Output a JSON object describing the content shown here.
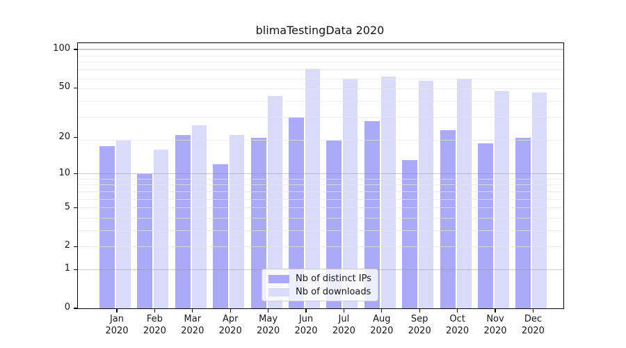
{
  "chart_data": {
    "type": "bar",
    "title": "blimaTestingData 2020",
    "categories": [
      "Jan",
      "Feb",
      "Mar",
      "Apr",
      "May",
      "Jun",
      "Jul",
      "Aug",
      "Sep",
      "Oct",
      "Nov",
      "Dec"
    ],
    "category_year": "2020",
    "series": [
      {
        "name": "Nb of distinct IPs",
        "color": "#aaaaf8",
        "values": [
          17,
          10,
          21,
          12,
          20,
          29,
          19,
          27,
          13,
          23,
          18,
          20
        ]
      },
      {
        "name": "Nb of downloads",
        "color": "#dadafa",
        "values": [
          19,
          16,
          25,
          21,
          43,
          70,
          58,
          61,
          57,
          59,
          47,
          46
        ]
      }
    ],
    "yscale": "log1p",
    "ylim": [
      0,
      112
    ],
    "yticks": {
      "values": [
        0,
        1,
        2,
        5,
        10,
        20,
        50,
        100
      ],
      "labels": [
        "0",
        "1",
        "2",
        "5",
        "10",
        "20",
        "50",
        "100"
      ]
    },
    "grid": {
      "on": true,
      "major_values": [
        1,
        10,
        100
      ],
      "minor_values": [
        2,
        3,
        4,
        5,
        6,
        7,
        8,
        9,
        19,
        29,
        39,
        49,
        59,
        69,
        79,
        89
      ]
    },
    "legend": {
      "position": "lower center",
      "frame": true
    }
  },
  "colors": {
    "background": "#ffffff",
    "spine": "#000000",
    "bar_distinct_ips": "#aaaaf8",
    "bar_downloads": "#dadafa",
    "grid_major": "#969696",
    "grid_minor": "#e4e4e4",
    "text": "#151515"
  }
}
